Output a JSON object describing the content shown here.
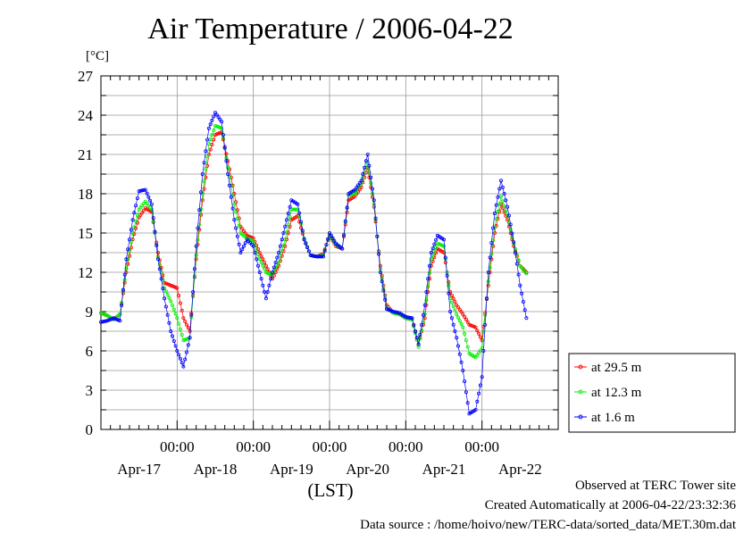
{
  "title": "Air Temperature / 2006-04-22",
  "unit_label": "[°C]",
  "x_axis_title": "(LST)",
  "footer": {
    "site": "Observed at TERC Tower site",
    "created": "Created Automatically at 2006-04-22/23:32:36",
    "source": "Data source : /home/hoivo/new/TERC-data/sorted_data/MET.30m.dat"
  },
  "chart_data": {
    "type": "line",
    "title": "Air Temperature / 2006-04-22",
    "ylabel": "[°C]",
    "xlabel": "(LST)",
    "ylim": [
      0,
      27
    ],
    "yticks": [
      "0",
      "3",
      "6",
      "9",
      "12",
      "15",
      "18",
      "21",
      "24",
      "27"
    ],
    "xlim_hours": [
      0,
      144
    ],
    "day_ticks": [
      {
        "label": "00:00",
        "day": "Apr-17",
        "hour": 24
      },
      {
        "label": "00:00",
        "day": "Apr-18",
        "hour": 48
      },
      {
        "label": "00:00",
        "day": "Apr-19",
        "hour": 72
      },
      {
        "label": "00:00",
        "day": "Apr-20",
        "hour": 96
      },
      {
        "label": "00:00",
        "day": "Apr-21",
        "hour": 120
      },
      {
        "label": "00:00",
        "day": "Apr-22",
        "hour": 144
      }
    ],
    "grid": true,
    "legend_position": "right",
    "series": [
      {
        "name": "at 29.5 m",
        "color": "#ff0000",
        "points": [
          [
            0,
            8.9
          ],
          [
            2,
            8.7
          ],
          [
            4,
            8.4
          ],
          [
            6,
            8.8
          ],
          [
            8,
            12.0
          ],
          [
            10,
            14.5
          ],
          [
            12,
            16.2
          ],
          [
            14,
            16.9
          ],
          [
            16,
            16.6
          ],
          [
            18,
            13.5
          ],
          [
            20,
            11.2
          ],
          [
            22,
            11.0
          ],
          [
            24,
            10.8
          ],
          [
            26,
            8.5
          ],
          [
            28,
            7.5
          ],
          [
            30,
            13.0
          ],
          [
            32,
            17.5
          ],
          [
            34,
            21.0
          ],
          [
            36,
            22.5
          ],
          [
            38,
            22.7
          ],
          [
            40,
            20.5
          ],
          [
            42,
            18.0
          ],
          [
            44,
            15.5
          ],
          [
            46,
            14.8
          ],
          [
            48,
            14.6
          ],
          [
            50,
            13.5
          ],
          [
            52,
            12.5
          ],
          [
            54,
            11.5
          ],
          [
            56,
            12.5
          ],
          [
            58,
            14.0
          ],
          [
            60,
            16.0
          ],
          [
            62,
            16.3
          ],
          [
            64,
            14.5
          ],
          [
            66,
            13.3
          ],
          [
            68,
            13.2
          ],
          [
            70,
            13.4
          ],
          [
            72,
            14.8
          ],
          [
            74,
            14.0
          ],
          [
            76,
            13.8
          ],
          [
            78,
            17.5
          ],
          [
            80,
            17.8
          ],
          [
            82,
            18.5
          ],
          [
            84,
            20.0
          ],
          [
            86,
            17.0
          ],
          [
            88,
            12.5
          ],
          [
            90,
            9.5
          ],
          [
            92,
            8.9
          ],
          [
            94,
            8.8
          ],
          [
            96,
            8.5
          ],
          [
            98,
            8.4
          ],
          [
            100,
            6.5
          ],
          [
            102,
            8.5
          ],
          [
            104,
            12.5
          ],
          [
            106,
            13.8
          ],
          [
            108,
            13.5
          ],
          [
            110,
            10.5
          ],
          [
            112,
            9.5
          ],
          [
            114,
            8.8
          ],
          [
            116,
            8.0
          ],
          [
            118,
            7.8
          ],
          [
            120,
            6.8
          ],
          [
            122,
            11.0
          ],
          [
            124,
            15.0
          ],
          [
            126,
            17.2
          ],
          [
            128,
            16.0
          ],
          [
            130,
            14.0
          ],
          [
            132,
            12.5
          ],
          [
            134,
            12.0
          ]
        ]
      },
      {
        "name": "at 12.3 m",
        "color": "#00ee00",
        "points": [
          [
            0,
            8.9
          ],
          [
            2,
            8.7
          ],
          [
            4,
            8.4
          ],
          [
            6,
            8.8
          ],
          [
            8,
            12.3
          ],
          [
            10,
            15.0
          ],
          [
            12,
            16.8
          ],
          [
            14,
            17.4
          ],
          [
            16,
            16.8
          ],
          [
            18,
            13.2
          ],
          [
            20,
            10.8
          ],
          [
            22,
            9.8
          ],
          [
            24,
            8.5
          ],
          [
            26,
            6.8
          ],
          [
            28,
            7.0
          ],
          [
            30,
            13.3
          ],
          [
            32,
            18.0
          ],
          [
            34,
            21.8
          ],
          [
            36,
            23.2
          ],
          [
            38,
            23.0
          ],
          [
            40,
            20.0
          ],
          [
            42,
            17.2
          ],
          [
            44,
            15.0
          ],
          [
            46,
            14.6
          ],
          [
            48,
            14.4
          ],
          [
            50,
            13.0
          ],
          [
            52,
            12.0
          ],
          [
            54,
            11.8
          ],
          [
            56,
            12.8
          ],
          [
            58,
            14.5
          ],
          [
            60,
            16.8
          ],
          [
            62,
            16.8
          ],
          [
            64,
            14.6
          ],
          [
            66,
            13.3
          ],
          [
            68,
            13.2
          ],
          [
            70,
            13.3
          ],
          [
            72,
            14.9
          ],
          [
            74,
            14.1
          ],
          [
            76,
            13.8
          ],
          [
            78,
            17.9
          ],
          [
            80,
            18.0
          ],
          [
            82,
            18.8
          ],
          [
            84,
            20.4
          ],
          [
            86,
            17.2
          ],
          [
            88,
            12.3
          ],
          [
            90,
            9.3
          ],
          [
            92,
            8.9
          ],
          [
            94,
            8.8
          ],
          [
            96,
            8.5
          ],
          [
            98,
            8.4
          ],
          [
            100,
            6.3
          ],
          [
            102,
            8.8
          ],
          [
            104,
            13.0
          ],
          [
            106,
            14.2
          ],
          [
            108,
            14.0
          ],
          [
            110,
            10.0
          ],
          [
            112,
            8.8
          ],
          [
            114,
            7.8
          ],
          [
            116,
            5.8
          ],
          [
            118,
            5.5
          ],
          [
            120,
            6.2
          ],
          [
            122,
            11.3
          ],
          [
            124,
            15.5
          ],
          [
            126,
            17.8
          ],
          [
            128,
            16.3
          ],
          [
            130,
            14.2
          ],
          [
            132,
            12.5
          ],
          [
            134,
            11.9
          ]
        ]
      },
      {
        "name": "at 1.6 m",
        "color": "#0000ff",
        "points": [
          [
            0,
            8.2
          ],
          [
            2,
            8.3
          ],
          [
            4,
            8.5
          ],
          [
            6,
            8.3
          ],
          [
            8,
            13.0
          ],
          [
            10,
            16.0
          ],
          [
            12,
            18.2
          ],
          [
            14,
            18.3
          ],
          [
            16,
            17.2
          ],
          [
            18,
            13.0
          ],
          [
            20,
            10.0
          ],
          [
            22,
            7.5
          ],
          [
            24,
            6.0
          ],
          [
            26,
            4.8
          ],
          [
            28,
            7.0
          ],
          [
            30,
            14.0
          ],
          [
            32,
            19.5
          ],
          [
            34,
            23.0
          ],
          [
            36,
            24.2
          ],
          [
            38,
            23.5
          ],
          [
            40,
            19.5
          ],
          [
            42,
            16.0
          ],
          [
            44,
            13.5
          ],
          [
            46,
            14.5
          ],
          [
            48,
            14.0
          ],
          [
            50,
            12.0
          ],
          [
            52,
            10.0
          ],
          [
            54,
            12.0
          ],
          [
            56,
            13.5
          ],
          [
            58,
            15.5
          ],
          [
            60,
            17.5
          ],
          [
            62,
            17.2
          ],
          [
            64,
            14.5
          ],
          [
            66,
            13.3
          ],
          [
            68,
            13.2
          ],
          [
            70,
            13.2
          ],
          [
            72,
            15.0
          ],
          [
            74,
            14.2
          ],
          [
            76,
            13.8
          ],
          [
            78,
            18.0
          ],
          [
            80,
            18.3
          ],
          [
            82,
            19.0
          ],
          [
            84,
            21.0
          ],
          [
            86,
            17.5
          ],
          [
            88,
            12.0
          ],
          [
            90,
            9.2
          ],
          [
            92,
            9.0
          ],
          [
            94,
            8.9
          ],
          [
            96,
            8.6
          ],
          [
            98,
            8.5
          ],
          [
            100,
            6.5
          ],
          [
            102,
            9.5
          ],
          [
            104,
            13.5
          ],
          [
            106,
            14.8
          ],
          [
            108,
            14.5
          ],
          [
            110,
            9.0
          ],
          [
            112,
            7.0
          ],
          [
            114,
            4.5
          ],
          [
            116,
            1.2
          ],
          [
            118,
            1.5
          ],
          [
            120,
            4.0
          ],
          [
            122,
            12.0
          ],
          [
            124,
            16.5
          ],
          [
            126,
            19.0
          ],
          [
            128,
            17.0
          ],
          [
            130,
            14.3
          ],
          [
            132,
            11.0
          ],
          [
            134,
            8.5
          ]
        ]
      }
    ]
  }
}
